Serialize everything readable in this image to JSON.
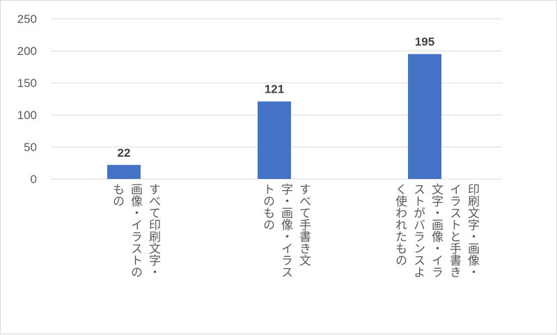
{
  "chart_data": {
    "type": "bar",
    "categories": [
      [
        "すべて印刷文字・",
        "画像・イラストの",
        "もの"
      ],
      [
        "すべて手書き文",
        "字・画像・イラス",
        "トのもの"
      ],
      [
        "印刷文字・画像・",
        "イラストと手書き",
        "文字・画像・イラ",
        "ストがバランスよ",
        "く使われたもの"
      ]
    ],
    "values": [
      22,
      121,
      195
    ],
    "data_labels": [
      "22",
      "121",
      "195"
    ],
    "ylim": [
      0,
      250
    ],
    "yticks": [
      "0",
      "50",
      "100",
      "150",
      "200",
      "250"
    ],
    "grid": true,
    "bar_color": "#4472c4",
    "gridline_color": "#d9d9d9",
    "title": "",
    "xlabel": "",
    "ylabel": ""
  }
}
